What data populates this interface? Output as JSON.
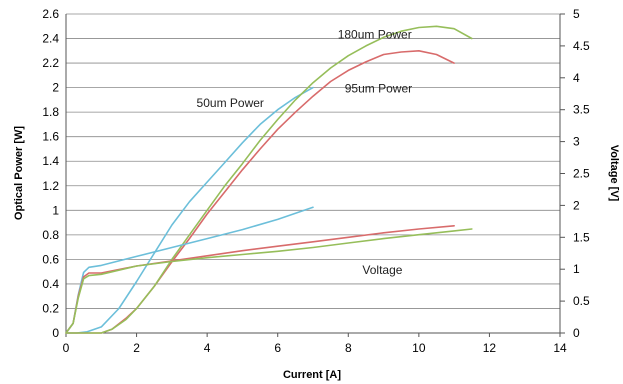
{
  "chart_data": {
    "type": "line",
    "xlabel": "Current [A]",
    "ylabel": "Optical Power [W]",
    "y2label": "Voltage [V]",
    "xlim": [
      0,
      14
    ],
    "ylim": [
      0,
      2.6
    ],
    "y2lim": [
      0,
      5
    ],
    "x_ticks": [
      0,
      2,
      4,
      6,
      8,
      10,
      12,
      14
    ],
    "y_ticks": [
      0,
      0.2,
      0.4,
      0.6,
      0.8,
      1,
      1.2,
      1.4,
      1.6,
      1.8,
      2,
      2.2,
      2.4,
      2.6
    ],
    "y2_ticks": [
      0,
      0.5,
      1,
      1.5,
      2,
      2.5,
      3,
      3.5,
      4,
      4.5,
      5
    ],
    "grid": "horizontal",
    "annotations": [
      {
        "text": "180um Power",
        "x": 7.7,
        "y": 2.4
      },
      {
        "text": "95um Power",
        "x": 7.9,
        "y": 1.96
      },
      {
        "text": "50um Power",
        "x": 3.7,
        "y": 1.84
      },
      {
        "text": "Voltage",
        "x": 8.4,
        "y": 0.48
      }
    ],
    "series": [
      {
        "color": "#6cbfda",
        "axis": "left",
        "x": [
          0,
          0.3,
          0.6,
          1.0,
          1.5,
          2.0,
          2.5,
          3.0,
          3.5,
          4.0,
          4.5,
          5.0,
          5.5,
          6.0,
          6.5,
          7.0
        ],
        "y": [
          0,
          0,
          0.01,
          0.05,
          0.2,
          0.42,
          0.65,
          0.88,
          1.07,
          1.23,
          1.39,
          1.55,
          1.7,
          1.82,
          1.92,
          2.0
        ]
      },
      {
        "color": "#d86b6b",
        "axis": "left",
        "x": [
          0,
          0.5,
          1.0,
          1.3,
          1.7,
          2.0,
          2.5,
          3.0,
          3.5,
          4.0,
          4.5,
          5.0,
          5.5,
          6.0,
          6.5,
          7.0,
          7.5,
          8.0,
          8.5,
          9.0,
          9.5,
          10.0,
          10.5,
          11.0
        ],
        "y": [
          0,
          0,
          0,
          0.03,
          0.12,
          0.2,
          0.38,
          0.58,
          0.77,
          0.97,
          1.15,
          1.33,
          1.5,
          1.66,
          1.8,
          1.93,
          2.05,
          2.14,
          2.21,
          2.27,
          2.29,
          2.3,
          2.27,
          2.2
        ]
      },
      {
        "color": "#96be5a",
        "axis": "left",
        "x": [
          0,
          0.5,
          1.0,
          1.3,
          1.7,
          2.0,
          2.5,
          3.0,
          3.5,
          4.0,
          4.5,
          5.0,
          5.5,
          6.0,
          6.5,
          7.0,
          7.5,
          8.0,
          8.5,
          9.0,
          9.5,
          10.0,
          10.5,
          11.0,
          11.5
        ],
        "y": [
          0,
          0,
          0,
          0.03,
          0.11,
          0.2,
          0.38,
          0.6,
          0.8,
          1.0,
          1.2,
          1.38,
          1.57,
          1.74,
          1.9,
          2.04,
          2.16,
          2.26,
          2.34,
          2.41,
          2.46,
          2.49,
          2.5,
          2.48,
          2.4
        ]
      },
      {
        "color": "#6cbfda",
        "axis": "right",
        "x": [
          0,
          0.2,
          0.35,
          0.5,
          0.65,
          1.0,
          2.0,
          3.0,
          4.0,
          5.0,
          6.0,
          7.0
        ],
        "y": [
          0,
          0.15,
          0.6,
          0.95,
          1.03,
          1.06,
          1.2,
          1.34,
          1.48,
          1.62,
          1.78,
          1.97
        ]
      },
      {
        "color": "#d86b6b",
        "axis": "right",
        "x": [
          0,
          0.2,
          0.35,
          0.5,
          0.65,
          1.0,
          2.0,
          3.0,
          4.0,
          5.0,
          6.0,
          7.0,
          8.0,
          9.0,
          10.0,
          11.0
        ],
        "y": [
          0,
          0.15,
          0.58,
          0.88,
          0.94,
          0.94,
          1.05,
          1.13,
          1.21,
          1.29,
          1.36,
          1.43,
          1.5,
          1.57,
          1.63,
          1.68
        ]
      },
      {
        "color": "#96be5a",
        "axis": "right",
        "x": [
          0,
          0.2,
          0.35,
          0.5,
          0.65,
          1.0,
          2.0,
          3.0,
          4.0,
          5.0,
          6.0,
          7.0,
          8.0,
          9.0,
          10.0,
          11.0,
          11.5
        ],
        "y": [
          0,
          0.15,
          0.55,
          0.85,
          0.9,
          0.92,
          1.05,
          1.12,
          1.18,
          1.23,
          1.28,
          1.34,
          1.41,
          1.48,
          1.54,
          1.6,
          1.63
        ]
      }
    ]
  }
}
